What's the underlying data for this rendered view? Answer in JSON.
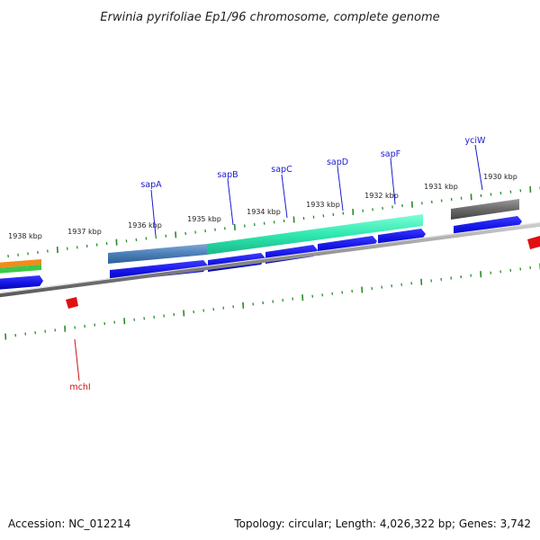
{
  "title": "Erwinia pyrifoliae Ep1/96 chromosome, complete genome",
  "footer": {
    "accession": "Accession: NC_012214",
    "summary": "Topology: circular; Length: 4,026,322 bp; Genes: 3,742"
  },
  "colors": {
    "forward_cds": "#1010e0",
    "label_forward": "#1a1ad0",
    "label_reverse": "#cc1010",
    "reverse_feature": "#e01010",
    "tick": "#2a8a2a",
    "backbone": "#8a8a8a"
  },
  "ruler_labels": [
    "1938 kbp",
    "1937 kbp",
    "1936 kbp",
    "1935 kbp",
    "1934 kbp",
    "1933 kbp",
    "1932 kbp",
    "1931 kbp",
    "1930 kbp"
  ],
  "genes": {
    "sapA": "sapA",
    "sapB": "sapB",
    "sapC": "sapC",
    "sapD": "sapD",
    "sapF": "sapF",
    "yciW": "yciW",
    "mchI": "mchI"
  }
}
